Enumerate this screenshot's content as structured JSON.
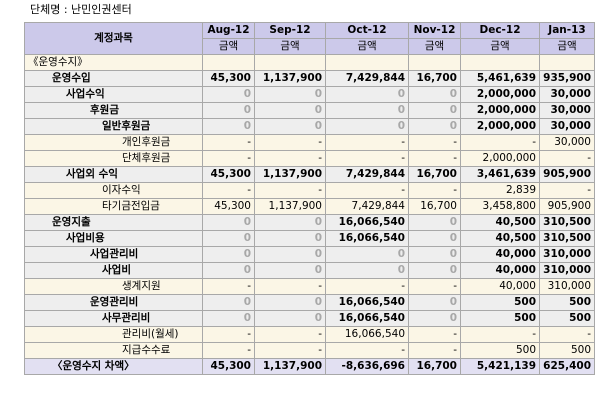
{
  "org": "단체명 : 난민인권센터",
  "header": {
    "account": "계정과목",
    "months": [
      "Aug-12",
      "Sep-12",
      "Oct-12",
      "Nov-12",
      "Dec-12",
      "Jan-13"
    ],
    "unit": "금액"
  },
  "rows": [
    {
      "indent": 0,
      "label": "《운영수지》",
      "values": [
        "",
        "",
        "",
        "",
        "",
        ""
      ],
      "bold": false,
      "bg": "tan"
    },
    {
      "indent": 1,
      "label": "운영수입",
      "values": [
        "45,300",
        "1,137,900",
        "7,429,844",
        "16,700",
        "5,461,639",
        "935,900"
      ],
      "bold": true,
      "bg": "gray"
    },
    {
      "indent": 2,
      "label": "사업수익",
      "values": [
        "0",
        "0",
        "0",
        "0",
        "2,000,000",
        "30,000"
      ],
      "bold": true,
      "bg": "gray"
    },
    {
      "indent": 3,
      "label": "후원금",
      "values": [
        "0",
        "0",
        "0",
        "0",
        "2,000,000",
        "30,000"
      ],
      "bold": true,
      "bg": "gray"
    },
    {
      "indent": 4,
      "label": "일반후원금",
      "values": [
        "0",
        "0",
        "0",
        "0",
        "2,000,000",
        "30,000"
      ],
      "bold": true,
      "bg": "gray"
    },
    {
      "indent": 5,
      "label": "개인후원금",
      "values": [
        "-",
        "-",
        "-",
        "-",
        "-",
        "30,000"
      ],
      "bold": false,
      "bg": "tan"
    },
    {
      "indent": 5,
      "label": "단체후원금",
      "values": [
        "-",
        "-",
        "-",
        "-",
        "2,000,000",
        "-"
      ],
      "bold": false,
      "bg": "tan"
    },
    {
      "indent": 2,
      "label": "사업외 수익",
      "values": [
        "45,300",
        "1,137,900",
        "7,429,844",
        "16,700",
        "3,461,639",
        "905,900"
      ],
      "bold": true,
      "bg": "gray"
    },
    {
      "indent": 4,
      "label": "이자수익",
      "values": [
        "-",
        "-",
        "-",
        "-",
        "2,839",
        "-"
      ],
      "bold": false,
      "bg": "tan"
    },
    {
      "indent": 4,
      "label": "타기금전입금",
      "values": [
        "45,300",
        "1,137,900",
        "7,429,844",
        "16,700",
        "3,458,800",
        "905,900"
      ],
      "bold": false,
      "bg": "tan"
    },
    {
      "indent": 1,
      "label": "운영지출",
      "values": [
        "0",
        "0",
        "16,066,540",
        "0",
        "40,500",
        "310,500"
      ],
      "bold": true,
      "bg": "gray"
    },
    {
      "indent": 2,
      "label": "사업비용",
      "values": [
        "0",
        "0",
        "16,066,540",
        "0",
        "40,500",
        "310,500"
      ],
      "bold": true,
      "bg": "gray"
    },
    {
      "indent": 3,
      "label": "사업관리비",
      "values": [
        "0",
        "0",
        "0",
        "0",
        "40,000",
        "310,000"
      ],
      "bold": true,
      "bg": "gray"
    },
    {
      "indent": 4,
      "label": "사업비",
      "values": [
        "0",
        "0",
        "0",
        "0",
        "40,000",
        "310,000"
      ],
      "bold": true,
      "bg": "gray"
    },
    {
      "indent": 5,
      "label": "생계지원",
      "values": [
        "-",
        "-",
        "-",
        "-",
        "40,000",
        "310,000"
      ],
      "bold": false,
      "bg": "tan"
    },
    {
      "indent": 3,
      "label": "운영관리비",
      "values": [
        "0",
        "0",
        "16,066,540",
        "0",
        "500",
        "500"
      ],
      "bold": true,
      "bg": "gray"
    },
    {
      "indent": 4,
      "label": "사무관리비",
      "values": [
        "0",
        "0",
        "16,066,540",
        "0",
        "500",
        "500"
      ],
      "bold": true,
      "bg": "gray"
    },
    {
      "indent": 5,
      "label": "관리비(월세)",
      "values": [
        "-",
        "-",
        "16,066,540",
        "-",
        "-",
        "-"
      ],
      "bold": false,
      "bg": "tan"
    },
    {
      "indent": 5,
      "label": "지급수수료",
      "values": [
        "-",
        "-",
        "-",
        "-",
        "500",
        "500"
      ],
      "bold": false,
      "bg": "tan"
    },
    {
      "indent": 1,
      "label": "〈운영수지 차액〉",
      "values": [
        "45,300",
        "1,137,900",
        "-8,636,696",
        "16,700",
        "5,421,139",
        "625,400"
      ],
      "bold": true,
      "bg": "lav"
    }
  ]
}
